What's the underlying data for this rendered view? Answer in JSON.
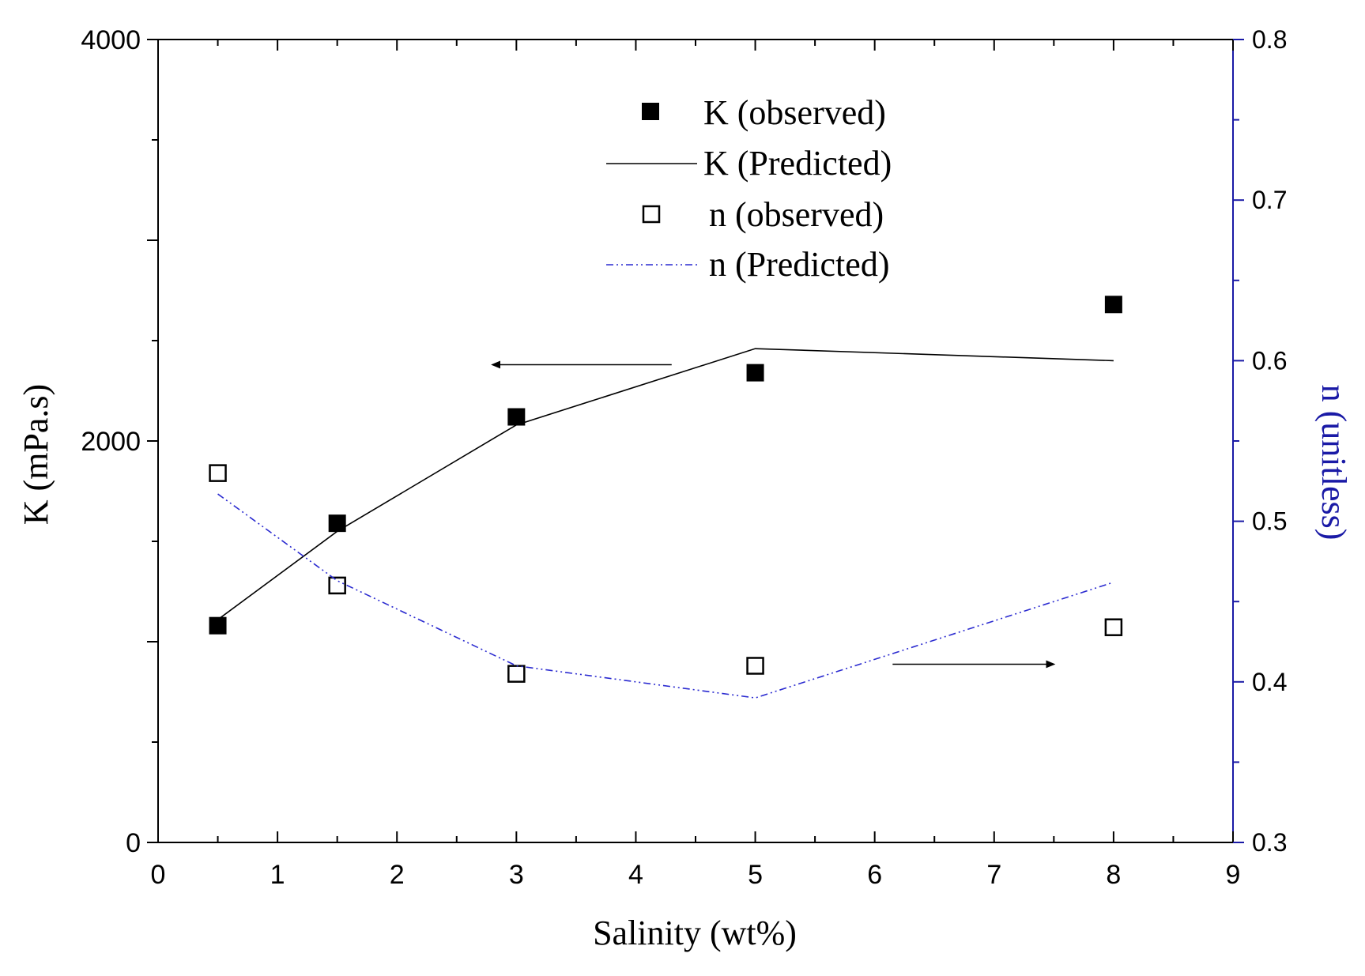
{
  "chart_data": {
    "type": "line",
    "title": "",
    "xlabel": "Salinity (wt%)",
    "ylabel_left": "K (mPa.s)",
    "ylabel_right": "n (unitless)",
    "xlim": [
      0,
      9
    ],
    "ylim_left": [
      0,
      4000
    ],
    "ylim_right": [
      0.3,
      0.8
    ],
    "x_ticks": [
      0,
      1,
      2,
      3,
      4,
      5,
      6,
      7,
      8,
      9
    ],
    "y_left_ticks_labeled": [
      0,
      2000,
      4000
    ],
    "y_right_ticks_labeled": [
      0.3,
      0.4,
      0.5,
      0.6,
      0.7,
      0.8
    ],
    "grid": false,
    "legend_placement": "top-center",
    "series": [
      {
        "name": "K (observed)",
        "axis": "left",
        "style": "filled-square",
        "color": "#000000",
        "x": [
          0.5,
          1.5,
          3,
          5,
          8
        ],
        "values": [
          1080,
          1590,
          2120,
          2340,
          2680
        ]
      },
      {
        "name": "K (Predicted)",
        "axis": "left",
        "style": "solid-line",
        "color": "#000000",
        "x": [
          0.5,
          1.5,
          3,
          5,
          8
        ],
        "values": [
          1110,
          1550,
          2080,
          2460,
          2400
        ]
      },
      {
        "name": "n (observed)",
        "axis": "right",
        "style": "open-square",
        "color": "#000000",
        "x": [
          0.5,
          1.5,
          3,
          5,
          8
        ],
        "values": [
          0.53,
          0.46,
          0.405,
          0.41,
          0.434
        ]
      },
      {
        "name": "n (Predicted)",
        "axis": "right",
        "style": "dash-dot-line",
        "color": "#2a2ad0",
        "x": [
          0.5,
          1.5,
          3,
          5,
          8
        ],
        "values": [
          0.517,
          0.463,
          0.41,
          0.39,
          0.462
        ]
      }
    ],
    "annotations": [
      {
        "type": "arrow",
        "direction": "left",
        "axis": "left",
        "x_from": 4.3,
        "x_to": 2.8,
        "y": 2380,
        "meaning": "K series uses left axis"
      },
      {
        "type": "arrow",
        "direction": "right",
        "axis": "right",
        "x_from": 6.15,
        "x_to": 7.5,
        "y": 0.411,
        "meaning": "n series uses right axis"
      }
    ],
    "colors": {
      "axis": "#000000",
      "right_axis": "#1a1aa6",
      "n_predicted": "#2a2ad0"
    }
  }
}
